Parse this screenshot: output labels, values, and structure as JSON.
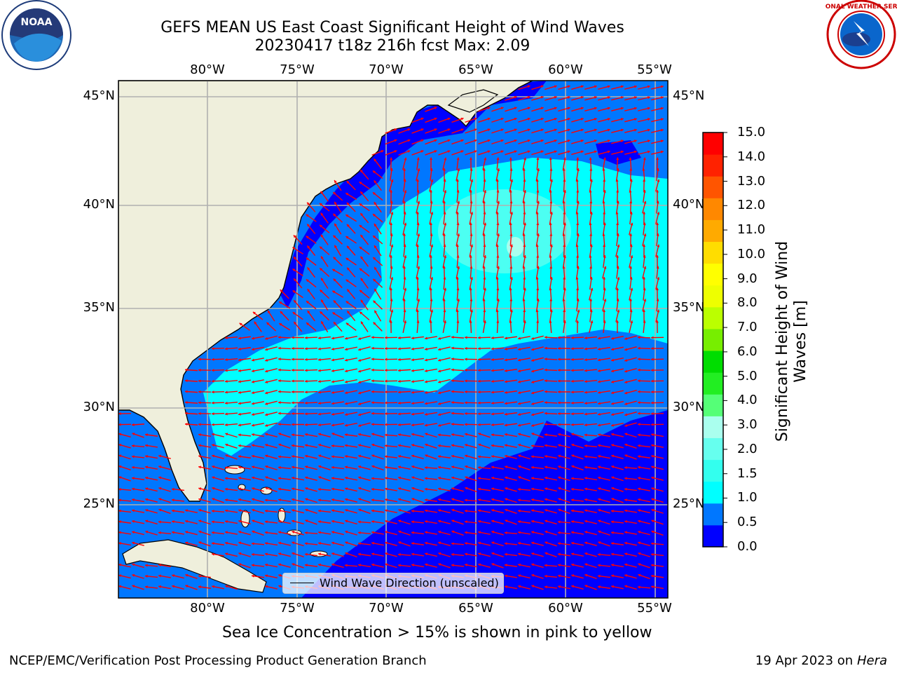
{
  "title": {
    "line1": "GEFS MEAN US East Coast Significant Height of Wind Waves",
    "line2": "20230417 t18z 216h fcst   Max: 2.09"
  },
  "axes": {
    "lon_labels": [
      "80°W",
      "75°W",
      "70°W",
      "65°W",
      "60°W",
      "55°W"
    ],
    "lat_labels": [
      "45°N",
      "40°N",
      "35°N",
      "30°N",
      "25°N"
    ]
  },
  "colorbar": {
    "label": "Significant Height of Wind Waves [m]",
    "ticks": [
      "0.0",
      "0.5",
      "1.0",
      "1.5",
      "2.0",
      "3.0",
      "4.0",
      "5.0",
      "6.0",
      "7.0",
      "8.0",
      "9.0",
      "10.0",
      "11.0",
      "12.0",
      "13.0",
      "14.0",
      "15.0"
    ],
    "colors": [
      "#0000ff",
      "#0077ff",
      "#00ffff",
      "#33ffee",
      "#66ffee",
      "#aaffee",
      "#55ff77",
      "#22ee22",
      "#00dd00",
      "#77ee00",
      "#bbff00",
      "#eeff00",
      "#ffff00",
      "#ffdd00",
      "#ffaa00",
      "#ff8800",
      "#ff5500",
      "#ff2200",
      "#ff0000"
    ]
  },
  "legend": {
    "label": "Wind Wave Direction (unscaled)"
  },
  "note": "Sea Ice Concentration > 15% is shown in pink to yellow",
  "footer": {
    "left": "NCEP/EMC/Verification Post Processing Product Generation Branch",
    "right_date": "19 Apr 2023 on ",
    "right_host": "Hera"
  },
  "logos": {
    "left": "NOAA",
    "right": "NATIONAL WEATHER SERVICE"
  },
  "map_colors": {
    "land": "#efefdc",
    "deep": "#0000ff",
    "mid": "#0077ff",
    "high": "#00ffff",
    "peak": "#66ffee",
    "arrow": "#ff0000",
    "grid": "#b0b0b0"
  }
}
